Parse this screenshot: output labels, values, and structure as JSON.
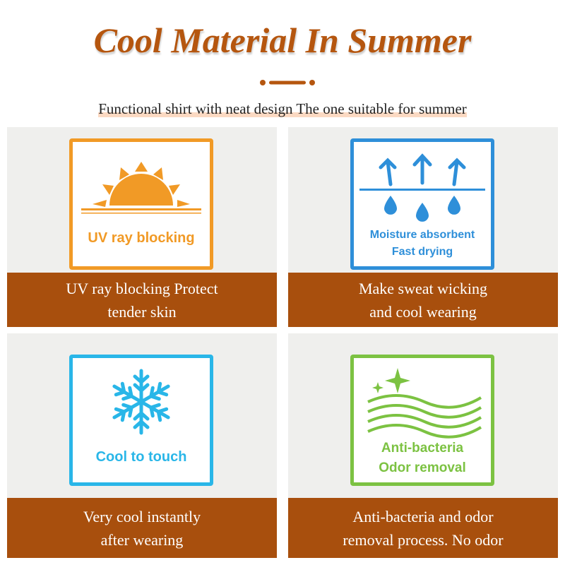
{
  "title": "Cool Material In Summer",
  "subtitle": "Functional shirt with neat design The one suitable for summer",
  "colors": {
    "brand": "#b5560f",
    "bar": "#a84f0d",
    "uv": "#f19a26",
    "moisture": "#2e8fd9",
    "cool": "#29b6e8",
    "antibacteria": "#7cc242"
  },
  "features": [
    {
      "icon": "sun-icon",
      "icon_text": [
        "UV ray blocking"
      ],
      "caption": [
        "UV ray blocking Protect",
        "tender skin"
      ]
    },
    {
      "icon": "moisture-icon",
      "icon_text": [
        "Moisture absorbent",
        "Fast drying"
      ],
      "caption": [
        "Make sweat wicking",
        "and cool wearing"
      ]
    },
    {
      "icon": "snowflake-icon",
      "icon_text": [
        "Cool to touch"
      ],
      "caption": [
        "Very cool instantly",
        "after wearing"
      ]
    },
    {
      "icon": "waves-sparkle-icon",
      "icon_text": [
        "Anti-bacteria",
        "Odor removal"
      ],
      "caption": [
        "Anti-bacteria and odor",
        "removal process. No odor"
      ]
    }
  ]
}
